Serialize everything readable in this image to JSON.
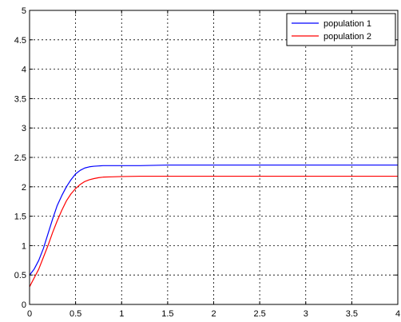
{
  "chart_data": {
    "type": "line",
    "title": "",
    "xlabel": "",
    "ylabel": "",
    "xlim": [
      0,
      4
    ],
    "ylim": [
      0,
      5
    ],
    "grid": true,
    "grid_style": "dotted",
    "legend_position": "top-right",
    "x_ticks": [
      "0",
      "0.5",
      "1",
      "1.5",
      "2",
      "2.5",
      "3",
      "3.5",
      "4"
    ],
    "y_ticks": [
      "0",
      "0.5",
      "1",
      "1.5",
      "2",
      "2.5",
      "3",
      "3.5",
      "4",
      "4.5",
      "5"
    ],
    "series": [
      {
        "name": "population 1",
        "color": "#0000ff",
        "x": [
          0,
          0.05,
          0.1,
          0.15,
          0.2,
          0.25,
          0.3,
          0.35,
          0.4,
          0.45,
          0.5,
          0.55,
          0.6,
          0.65,
          0.7,
          0.75,
          0.8,
          0.9,
          1.0,
          1.2,
          1.5,
          2.0,
          2.5,
          3.0,
          3.5,
          4.0
        ],
        "y": [
          0.5,
          0.6,
          0.75,
          0.95,
          1.2,
          1.45,
          1.68,
          1.85,
          2.0,
          2.12,
          2.22,
          2.28,
          2.32,
          2.34,
          2.35,
          2.355,
          2.36,
          2.36,
          2.36,
          2.36,
          2.37,
          2.37,
          2.37,
          2.37,
          2.37,
          2.37
        ]
      },
      {
        "name": "population 2",
        "color": "#ff0000",
        "x": [
          0,
          0.05,
          0.1,
          0.15,
          0.2,
          0.25,
          0.3,
          0.35,
          0.4,
          0.45,
          0.5,
          0.55,
          0.6,
          0.65,
          0.7,
          0.75,
          0.8,
          0.9,
          1.0,
          1.2,
          1.5,
          2.0,
          2.5,
          3.0,
          3.5,
          4.0
        ],
        "y": [
          0.3,
          0.45,
          0.6,
          0.8,
          1.0,
          1.22,
          1.42,
          1.6,
          1.76,
          1.88,
          1.97,
          2.04,
          2.09,
          2.12,
          2.14,
          2.155,
          2.165,
          2.17,
          2.175,
          2.18,
          2.18,
          2.18,
          2.18,
          2.18,
          2.18,
          2.18
        ]
      }
    ]
  }
}
